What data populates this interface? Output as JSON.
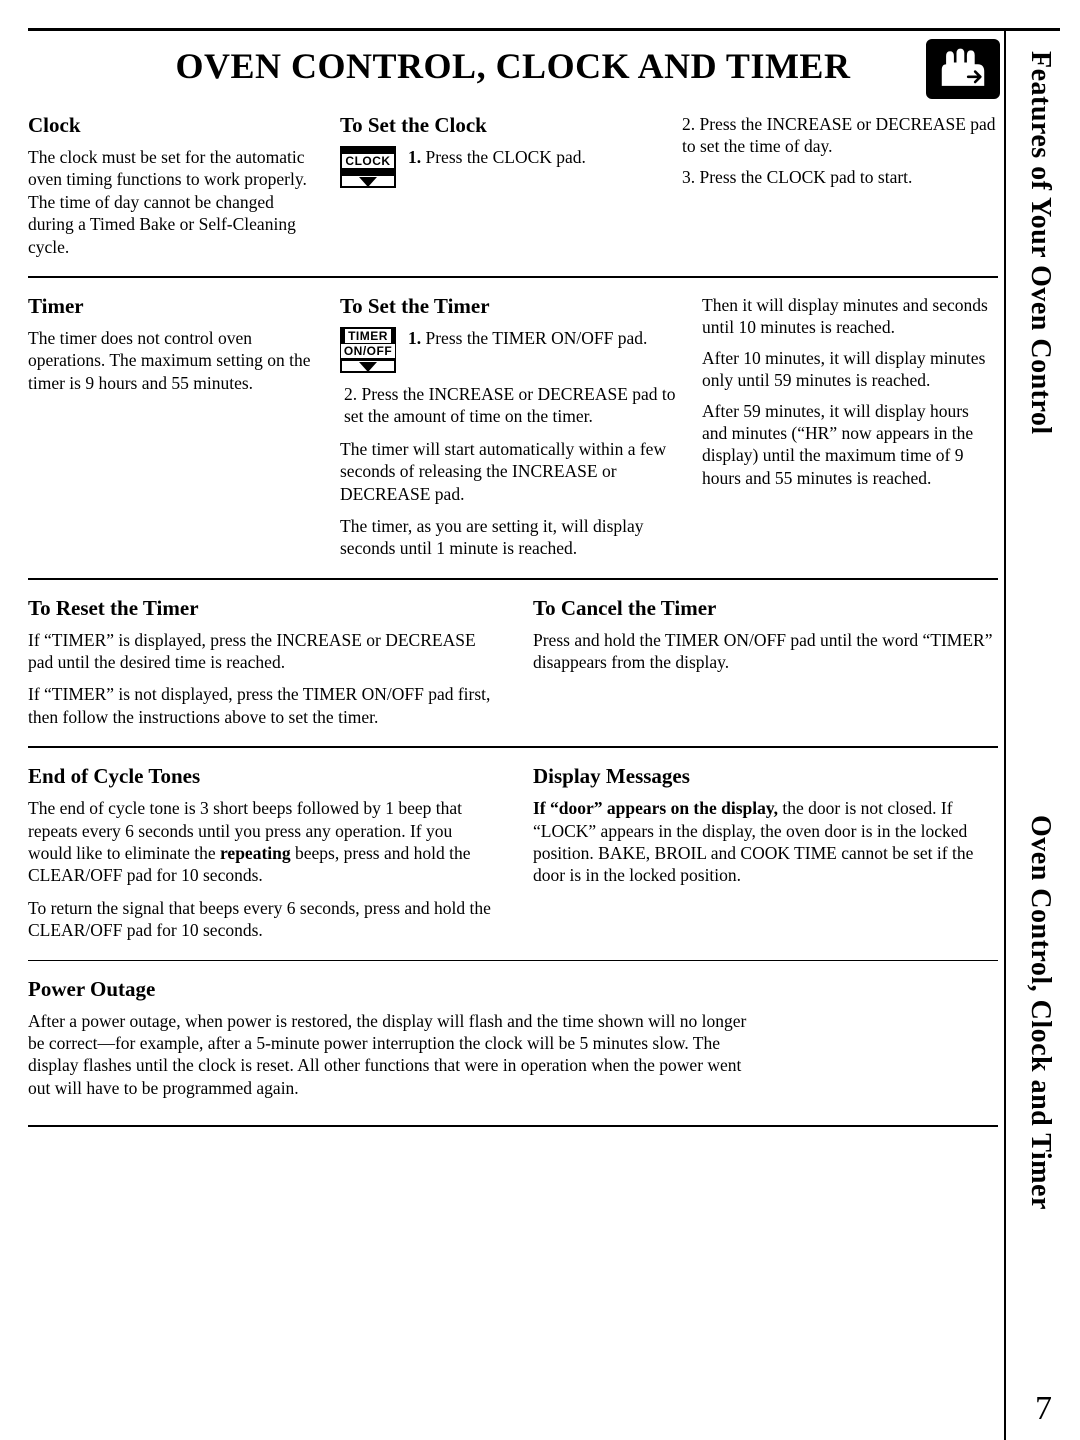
{
  "title": "OVEN CONTROL, CLOCK AND TIMER",
  "side": {
    "label1": "Features of Your Oven Control",
    "label2": "Oven Control, Clock and Timer",
    "pagenum": "7"
  },
  "clock": {
    "heading": "Clock",
    "body": "The clock must be set for the automatic oven timing functions to work properly. The time of day cannot be changed during a Timed Bake or Self-Cleaning cycle."
  },
  "set_clock": {
    "heading": "To Set the Clock",
    "pad_label": "CLOCK",
    "step1_label": "1.",
    "step1_text": "Press the CLOCK pad.",
    "step2": "2. Press the INCREASE or DECREASE pad to set the time of day.",
    "step3": "3. Press the CLOCK pad to start."
  },
  "timer": {
    "heading": "Timer",
    "body": "The timer does not control oven operations. The maximum setting on the timer is 9 hours and 55 minutes."
  },
  "set_timer": {
    "heading": "To Set the Timer",
    "pad_label1": "TIMER",
    "pad_label2": "ON/OFF",
    "step1_label": "1.",
    "step1_text": "Press the TIMER ON/OFF pad.",
    "step2": "2. Press the INCREASE or DECREASE pad to set the amount of time on the timer.",
    "para1": "The timer will start automatically within a few seconds of releasing the INCREASE or DECREASE pad.",
    "para2": "The timer, as you are setting it, will display seconds until 1 minute is reached.",
    "right1": "Then it will display minutes and seconds until 10 minutes is reached.",
    "right2": "After 10 minutes, it will display minutes only until 59 minutes is reached.",
    "right3": "After 59 minutes, it will display hours and minutes (“HR” now appears in the display) until the maximum time of 9 hours and 55 minutes is reached."
  },
  "reset": {
    "heading": "To Reset the Timer",
    "p1": "If “TIMER” is displayed, press the INCREASE or DECREASE pad until the desired time is reached.",
    "p2": "If “TIMER” is not displayed, press the TIMER ON/OFF pad first, then follow the instructions above to set the timer."
  },
  "cancel": {
    "heading": "To Cancel the Timer",
    "p1": "Press and hold the TIMER ON/OFF pad until the word “TIMER” disappears from the display."
  },
  "eoc": {
    "heading": "End of Cycle Tones",
    "p1": "The end of cycle tone is 3 short beeps followed by 1 beep that repeats every 6 seconds until you press any operation. If you would like to eliminate the repeating beeps, press and hold the CLEAR/OFF pad for 10 seconds.",
    "p2": "To return the signal that beeps every 6 seconds, press and hold the CLEAR/OFF pad for 10 seconds."
  },
  "display": {
    "heading": "Display Messages",
    "p1": "If “door” appears on the display, the door is not closed. If “LOCK” appears in the display, the oven door is in the locked position. BAKE, BROIL and COOK TIME cannot be set if the door is in the locked position.",
    "bold_lead": "If “door” appears on the display,"
  },
  "outage": {
    "heading": "Power Outage",
    "p1": "After a power outage, when power is restored, the display will flash and the time shown will no longer be correct—for example, after a 5-minute power interruption the clock will be 5 minutes slow. The display flashes until the clock is reset. All other functions that were in operation when the power went out will have to be programmed again."
  }
}
